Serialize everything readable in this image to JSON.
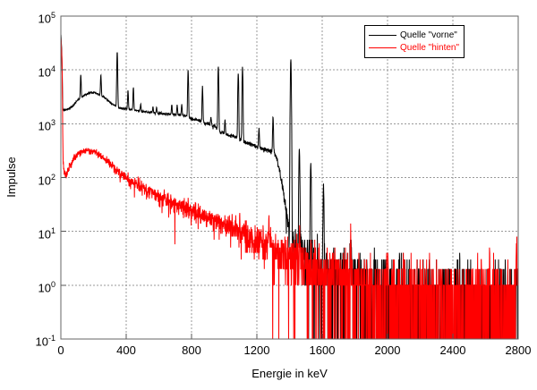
{
  "chart_data": {
    "type": "line",
    "title": "",
    "x_axis": {
      "label": "Energie in keV",
      "range": [
        0,
        2800
      ],
      "ticks": [
        0,
        400,
        800,
        1200,
        1600,
        2000,
        2400,
        2800
      ]
    },
    "y_axis": {
      "label": "Impulse",
      "scale": "log10",
      "tick_exponents": [
        5,
        4,
        3,
        2,
        1,
        0,
        -1
      ]
    },
    "grid": {
      "show": true,
      "color": "#999999",
      "style": "dotted"
    },
    "frame_color": "#666666",
    "tick_color": "#555555",
    "background": "#ffffff",
    "legend": {
      "position": "top-right"
    },
    "sampling": {
      "step_keV": 1.25,
      "seed": 1337,
      "gaussian_threshold": 25
    },
    "series": [
      {
        "name": "Quelle \"vorne\"",
        "color": "#000000",
        "noise_scale": 1.0,
        "peak_sigma_keV": 2.2,
        "continuum": [
          [
            1,
            45000
          ],
          [
            6,
            20000
          ],
          [
            12,
            1800
          ],
          [
            40,
            1850
          ],
          [
            70,
            2100
          ],
          [
            100,
            2700
          ],
          [
            140,
            3300
          ],
          [
            175,
            3800
          ],
          [
            205,
            3800
          ],
          [
            240,
            3400
          ],
          [
            270,
            3000
          ],
          [
            300,
            2500
          ],
          [
            330,
            2200
          ],
          [
            360,
            1950
          ],
          [
            420,
            1850
          ],
          [
            500,
            1700
          ],
          [
            600,
            1550
          ],
          [
            700,
            1480
          ],
          [
            772,
            1400
          ],
          [
            788,
            1250
          ],
          [
            850,
            1150
          ],
          [
            875,
            1050
          ],
          [
            940,
            900
          ],
          [
            975,
            700
          ],
          [
            1020,
            620
          ],
          [
            1080,
            560
          ],
          [
            1120,
            460
          ],
          [
            1160,
            420
          ],
          [
            1210,
            360
          ],
          [
            1250,
            330
          ],
          [
            1305,
            300
          ],
          [
            1325,
            210
          ],
          [
            1345,
            110
          ],
          [
            1365,
            48
          ],
          [
            1385,
            20
          ],
          [
            1400,
            10
          ],
          [
            1418,
            6.5
          ],
          [
            1445,
            4.8
          ],
          [
            1520,
            3
          ],
          [
            1620,
            2.1
          ],
          [
            1750,
            1.6
          ],
          [
            1900,
            1.15
          ],
          [
            2100,
            0.9
          ],
          [
            2300,
            0.75
          ],
          [
            2600,
            0.6
          ],
          [
            2800,
            0.55
          ]
        ],
        "peaks": [
          [
            122,
            5200
          ],
          [
            245,
            4800
          ],
          [
            345,
            19500
          ],
          [
            411,
            2300
          ],
          [
            444,
            2900
          ],
          [
            489,
            550
          ],
          [
            564,
            420
          ],
          [
            586,
            430
          ],
          [
            679,
            750
          ],
          [
            712,
            750
          ],
          [
            740,
            850
          ],
          [
            779,
            8800
          ],
          [
            867,
            3900
          ],
          [
            919,
            380
          ],
          [
            964,
            10800
          ],
          [
            1005,
            520
          ],
          [
            1086,
            8200
          ],
          [
            1112,
            10700
          ],
          [
            1213,
            460
          ],
          [
            1299,
            1050
          ],
          [
            1408,
            15800
          ],
          [
            1460,
            372
          ],
          [
            1530,
            186
          ],
          [
            1608,
            62
          ],
          [
            1775,
            6
          ]
        ]
      },
      {
        "name": "Quelle \"hinten\"",
        "color": "#ff0000",
        "noise_scale": 1.2,
        "peak_sigma_keV": 2.0,
        "continuum": [
          [
            1,
            38000
          ],
          [
            7,
            15000
          ],
          [
            14,
            170
          ],
          [
            28,
            112
          ],
          [
            50,
            150
          ],
          [
            80,
            235
          ],
          [
            120,
            300
          ],
          [
            155,
            322
          ],
          [
            190,
            312
          ],
          [
            230,
            272
          ],
          [
            280,
            205
          ],
          [
            330,
            152
          ],
          [
            400,
            96
          ],
          [
            480,
            70
          ],
          [
            560,
            52
          ],
          [
            640,
            40
          ],
          [
            720,
            31
          ],
          [
            800,
            25
          ],
          [
            900,
            18.5
          ],
          [
            1000,
            13.5
          ],
          [
            1100,
            9.8
          ],
          [
            1200,
            7
          ],
          [
            1300,
            5
          ],
          [
            1400,
            3.6
          ],
          [
            1500,
            2.6
          ],
          [
            1600,
            1.9
          ],
          [
            1700,
            1.45
          ],
          [
            1800,
            1.15
          ],
          [
            2000,
            0.85
          ],
          [
            2200,
            0.75
          ],
          [
            2500,
            0.65
          ],
          [
            2800,
            0.6
          ]
        ],
        "peaks": [
          [
            1275,
            9
          ],
          [
            1462,
            8
          ],
          [
            1775,
            8
          ],
          [
            2625,
            5
          ],
          [
            2790,
            4
          ]
        ]
      }
    ]
  }
}
